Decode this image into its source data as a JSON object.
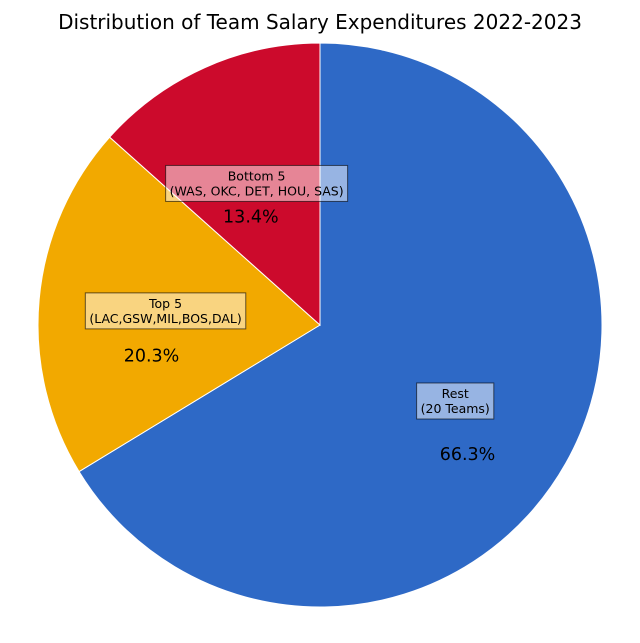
{
  "chart_data": {
    "type": "pie",
    "title": "Distribution of Team Salary Expenditures 2022-2023",
    "slices": [
      {
        "label_lines": [
          "Rest",
          "(20 Teams)"
        ],
        "value": 66.3,
        "pct_label": "66.3%",
        "color": "#2e69c6"
      },
      {
        "label_lines": [
          "Top 5",
          "(LAC,GSW,MIL,BOS,DAL)"
        ],
        "value": 20.3,
        "pct_label": "20.3%",
        "color": "#f2a900"
      },
      {
        "label_lines": [
          "Bottom 5",
          "(WAS, OKC, DET, HOU, SAS)"
        ],
        "value": 13.4,
        "pct_label": "13.4%",
        "color": "#cc0a2c"
      }
    ]
  }
}
